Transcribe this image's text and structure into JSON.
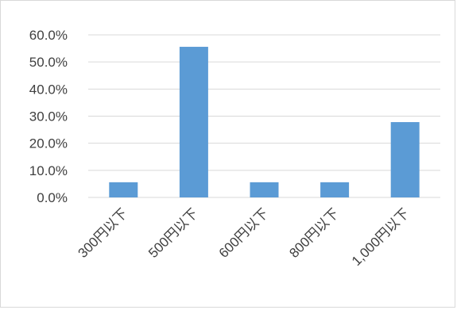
{
  "chart_data": {
    "type": "bar",
    "categories": [
      "300円以下",
      "500円以下",
      "600円以下",
      "800円以下",
      "1,000円以下"
    ],
    "values": [
      5.6,
      55.6,
      5.6,
      5.6,
      27.8
    ],
    "value_format": "percent",
    "yticks": [
      "0.0%",
      "10.0%",
      "20.0%",
      "30.0%",
      "40.0%",
      "50.0%",
      "60.0%"
    ],
    "ylim": [
      0,
      60
    ],
    "grid": true,
    "legend": "none",
    "bar_color": "#5b9bd5",
    "grid_color": "#d9d9d9",
    "title": "",
    "xlabel": "",
    "ylabel": ""
  }
}
